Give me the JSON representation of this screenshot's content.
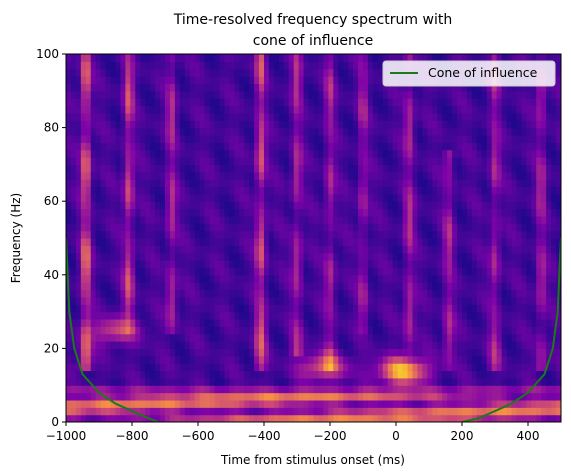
{
  "chart_data": {
    "type": "heatmap",
    "title_lines": [
      "Time-resolved frequency spectrum with",
      "cone of influence"
    ],
    "xlabel": "Time from stimulus onset (ms)",
    "ylabel": "Frequency (Hz)",
    "xlim": [
      -1000,
      500
    ],
    "ylim": [
      0,
      100
    ],
    "xticks": [
      -1000,
      -800,
      -600,
      -400,
      -200,
      0,
      200,
      400
    ],
    "yticks": [
      0,
      20,
      40,
      60,
      80,
      100
    ],
    "colormap": "plasma",
    "legend": {
      "position": "top-right",
      "entries": [
        {
          "label": "Cone of influence",
          "color": "#1a7a1a"
        }
      ]
    },
    "bursts": [
      {
        "t": -940,
        "f_lo": 20,
        "f_hi": 100,
        "strength": 0.95
      },
      {
        "t": -810,
        "f_lo": 30,
        "f_hi": 100,
        "strength": 0.75
      },
      {
        "t": -680,
        "f_lo": 30,
        "f_hi": 100,
        "strength": 0.55
      },
      {
        "t": -410,
        "f_lo": 20,
        "f_hi": 100,
        "strength": 0.8
      },
      {
        "t": -300,
        "f_lo": 25,
        "f_hi": 100,
        "strength": 0.55
      },
      {
        "t": -200,
        "f_lo": 20,
        "f_hi": 100,
        "strength": 0.5
      },
      {
        "t": -100,
        "f_lo": 30,
        "f_hi": 100,
        "strength": 0.45
      },
      {
        "t": 40,
        "f_lo": 25,
        "f_hi": 100,
        "strength": 0.55
      },
      {
        "t": 160,
        "f_lo": 20,
        "f_hi": 70,
        "strength": 0.5
      },
      {
        "t": 300,
        "f_lo": 20,
        "f_hi": 100,
        "strength": 0.5
      },
      {
        "t": 440,
        "f_lo": 20,
        "f_hi": 100,
        "strength": 0.5
      }
    ],
    "hotspots": [
      {
        "t": 20,
        "f": 14,
        "strength": 1.0
      },
      {
        "t": -220,
        "f": 15,
        "strength": 0.6
      },
      {
        "t": -850,
        "f": 25,
        "strength": 0.5
      }
    ],
    "cone_of_influence": {
      "left": [
        {
          "t": -1000,
          "f": 50
        },
        {
          "t": -990,
          "f": 30
        },
        {
          "t": -975,
          "f": 20
        },
        {
          "t": -950,
          "f": 13
        },
        {
          "t": -900,
          "f": 8
        },
        {
          "t": -850,
          "f": 5
        },
        {
          "t": -800,
          "f": 3
        },
        {
          "t": -750,
          "f": 1
        },
        {
          "t": -720,
          "f": 0
        }
      ],
      "right": [
        {
          "t": 200,
          "f": 0
        },
        {
          "t": 250,
          "f": 1
        },
        {
          "t": 300,
          "f": 3
        },
        {
          "t": 350,
          "f": 5
        },
        {
          "t": 400,
          "f": 8
        },
        {
          "t": 450,
          "f": 13
        },
        {
          "t": 475,
          "f": 20
        },
        {
          "t": 490,
          "f": 30
        },
        {
          "t": 500,
          "f": 50
        }
      ]
    }
  }
}
